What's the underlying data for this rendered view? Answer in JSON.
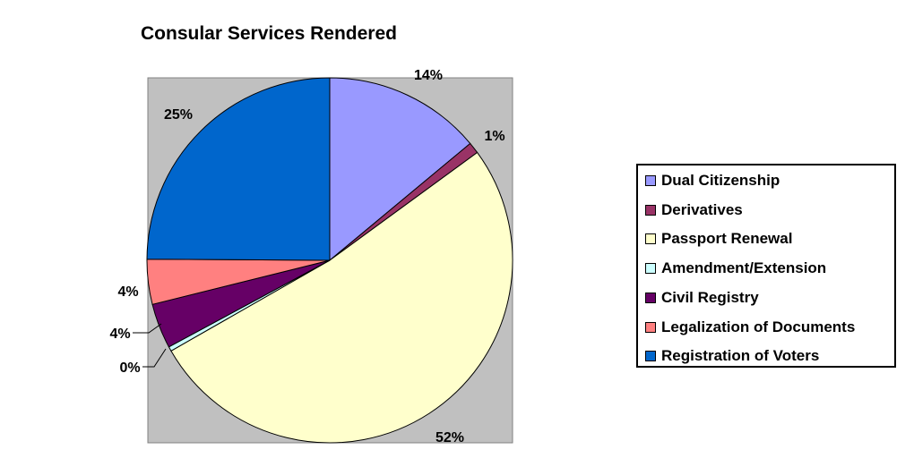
{
  "chart_data": {
    "type": "pie",
    "title": "Consular Services Rendered",
    "categories": [
      "Dual Citizenship",
      "Derivatives",
      "Passport Renewal",
      "Amendment/Extension",
      "Civil Registry",
      "Legalization of Documents",
      "Registration of Voters"
    ],
    "values": [
      14,
      1,
      52,
      0.4,
      4,
      4,
      25
    ],
    "data_labels": [
      "14%",
      "1%",
      "52%",
      "0%",
      "4%",
      "4%",
      "25%"
    ],
    "colors": [
      "#9999FF",
      "#993366",
      "#FFFFCC",
      "#CCFFFF",
      "#660066",
      "#FF8080",
      "#0066CC"
    ],
    "plot_background": "#C0C0C0",
    "legend_position": "right"
  }
}
